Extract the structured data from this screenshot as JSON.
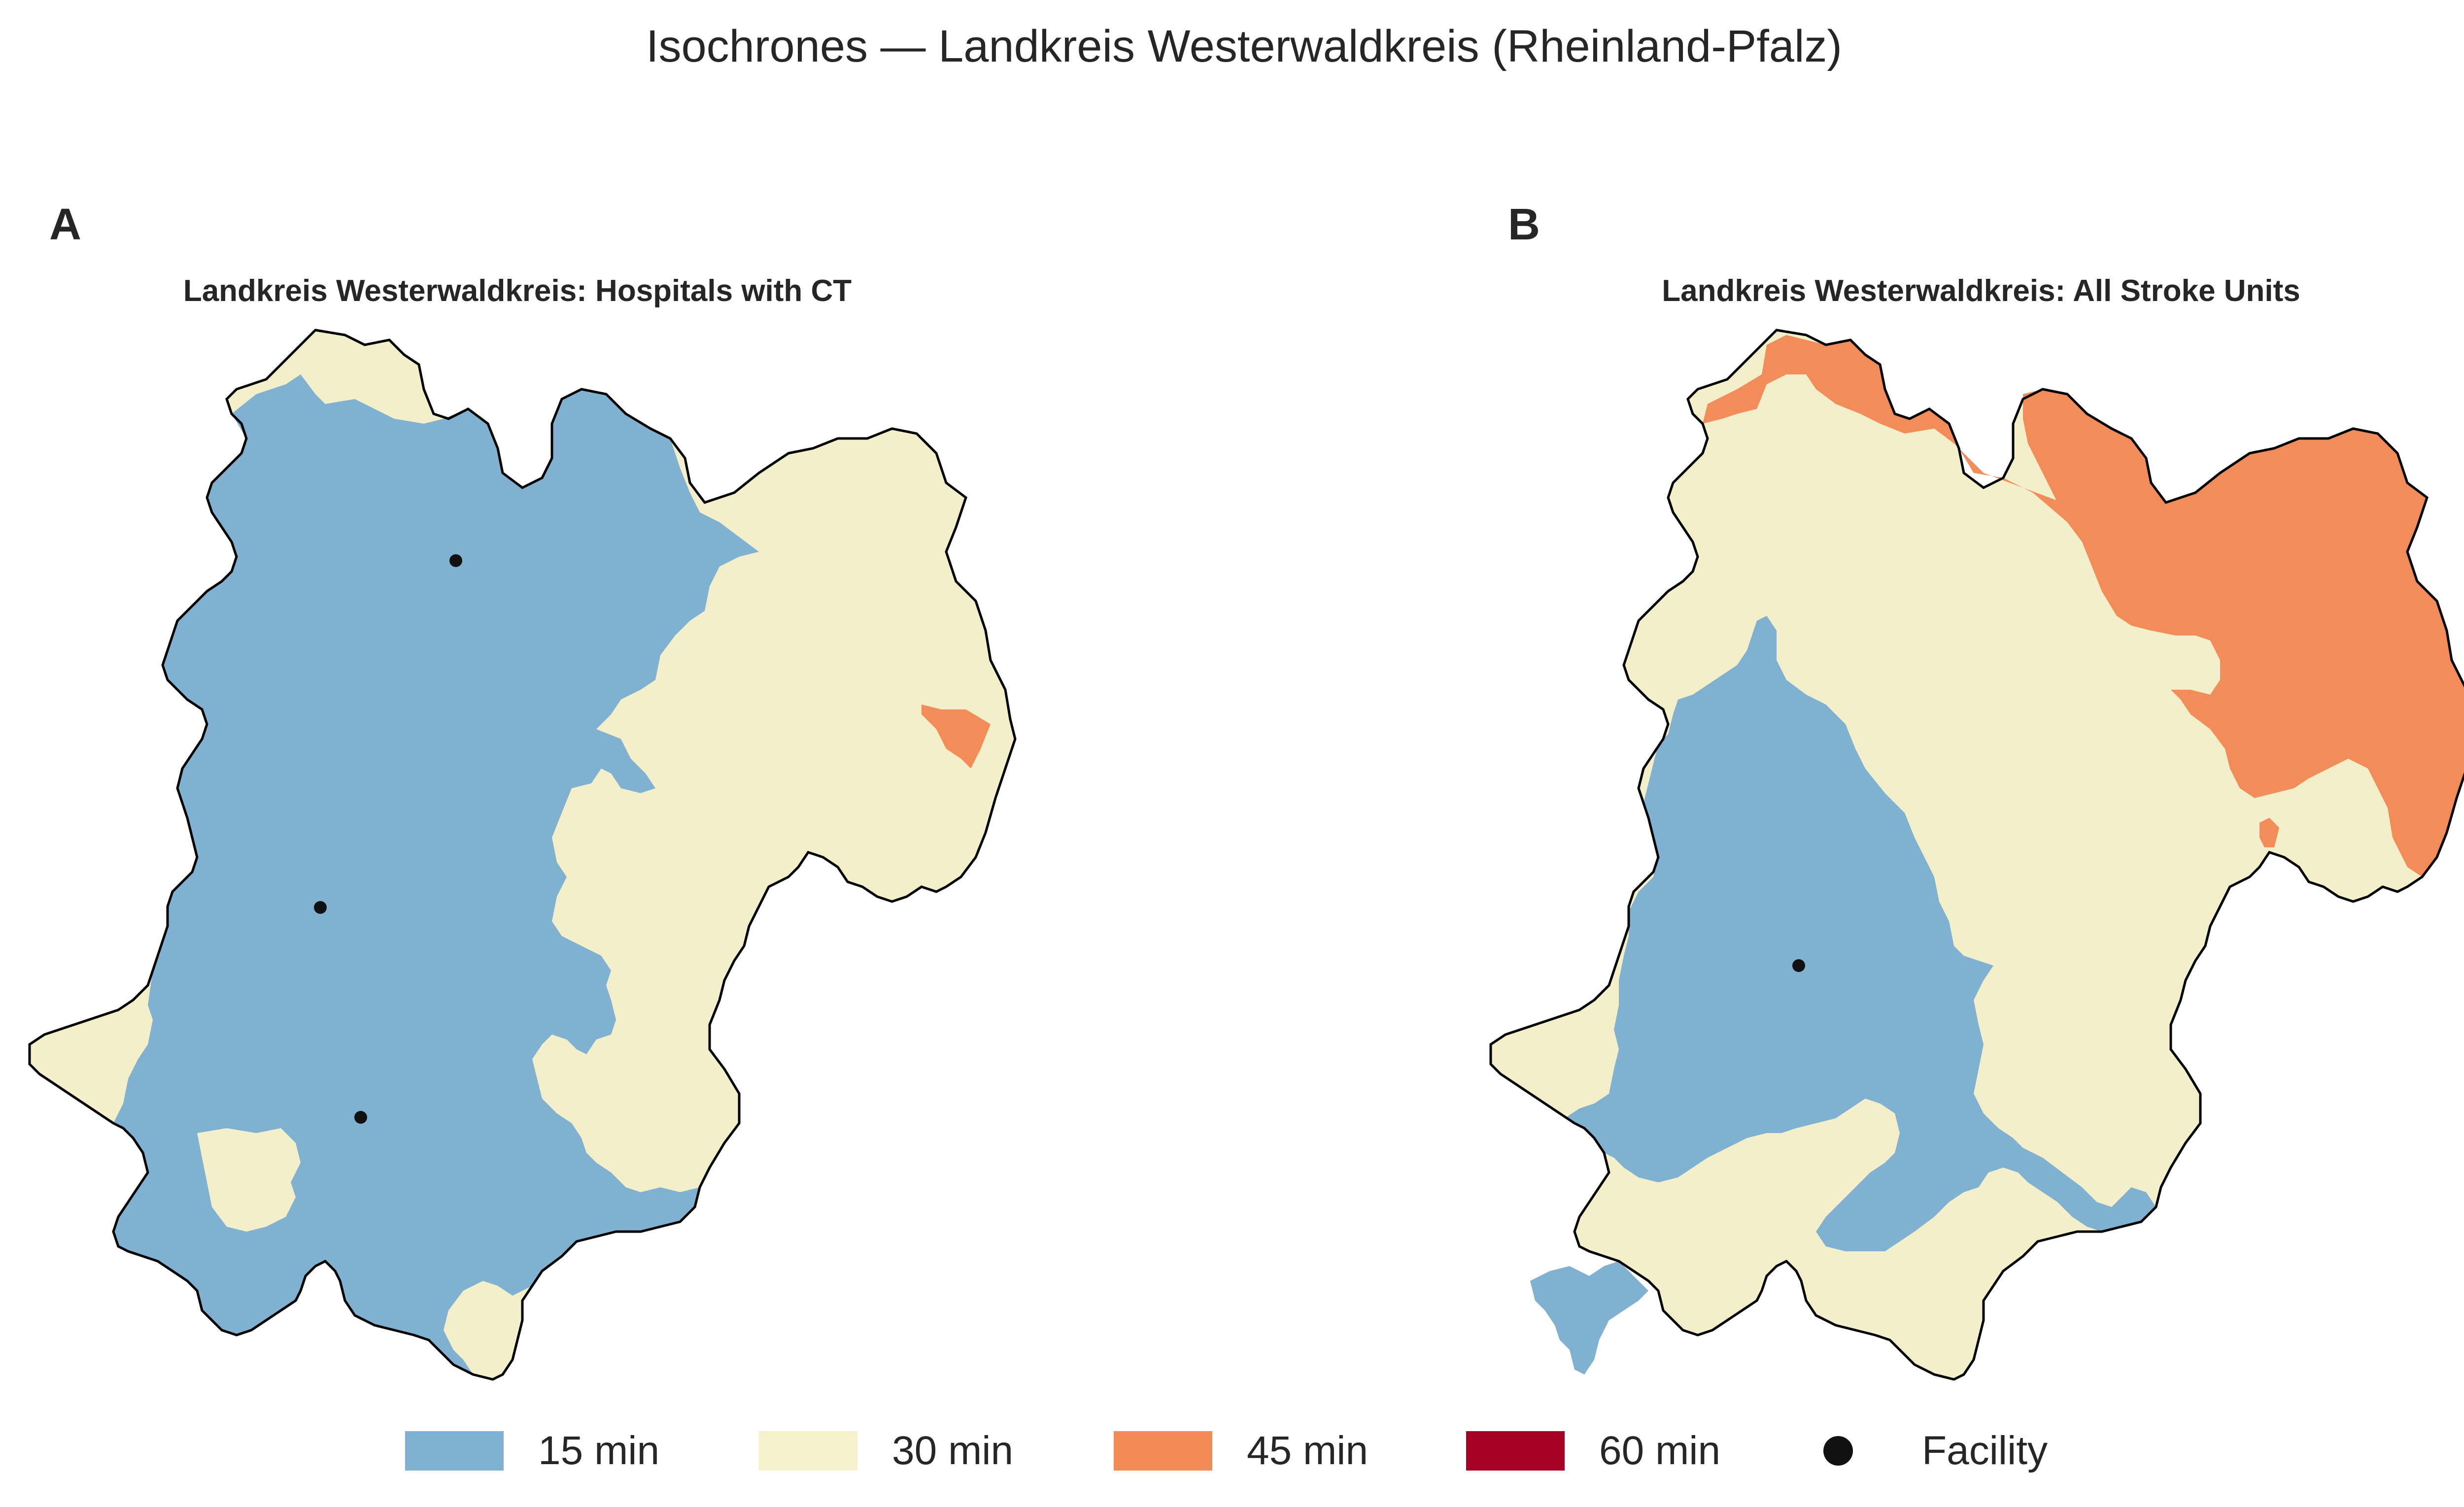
{
  "figure": {
    "title": "Isochrones — Landkreis Westerwaldkreis (Rheinland-Pfalz)"
  },
  "panels": [
    {
      "letter": "A",
      "title": "Landkreis Westerwaldkreis: Hospitals with CT"
    },
    {
      "letter": "B",
      "title": "Landkreis Westerwaldkreis: All Stroke Units"
    }
  ],
  "legend": {
    "items": [
      {
        "label": "15 min",
        "color": "#80b1d0"
      },
      {
        "label": "30 min",
        "color": "#f6f2cb"
      },
      {
        "label": "45 min",
        "color": "#f48b56"
      },
      {
        "label": "60 min",
        "color": "#a50026"
      },
      {
        "label": "Facility",
        "color": "#111111"
      }
    ]
  },
  "colors": {
    "outline": "#000000",
    "min15": "#80b1d0",
    "min30": "#f3efca",
    "min45": "#f28c58"
  }
}
